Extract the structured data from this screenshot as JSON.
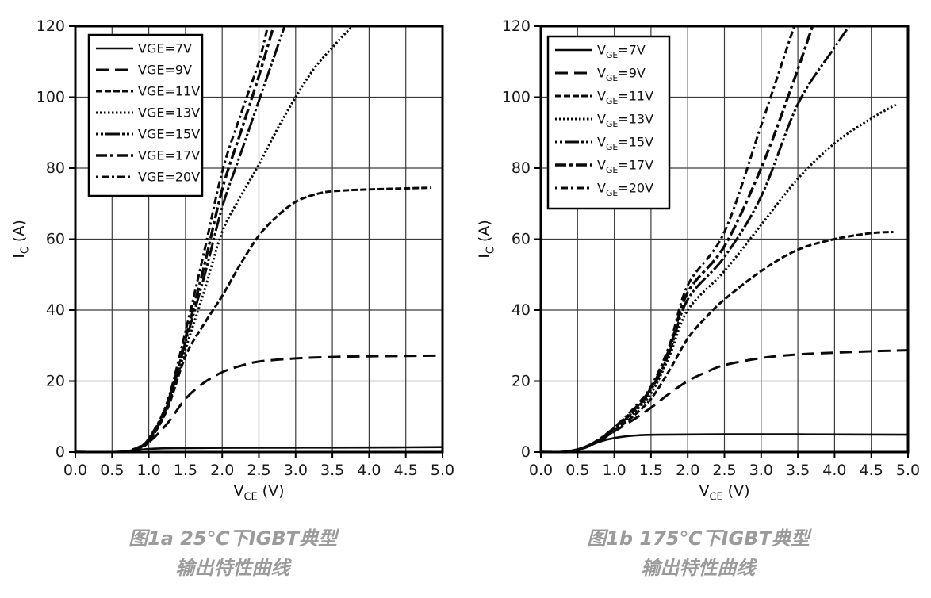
{
  "styles": {
    "curve_color": "#0a0a0a",
    "grid_color": "#3c3c3c",
    "frame_color": "#000000",
    "legend_border_color": "#000000",
    "caption_color": "#9b9b9b",
    "background": "#ffffff"
  },
  "chart_data": [
    {
      "type": "line",
      "temperature": "25℃",
      "caption": {
        "line1": "图1a 25℃下IGBT典型",
        "line2": "输出特性曲线"
      },
      "x_axis": {
        "parts": [
          {
            "t": "V"
          },
          {
            "t": "CE",
            "sub": true
          },
          {
            "t": " (V)"
          }
        ],
        "min": 0,
        "max": 5,
        "ticks": [
          "0.0",
          "0.5",
          "1.0",
          "1.5",
          "2.0",
          "2.5",
          "3.0",
          "3.5",
          "4.0",
          "4.5",
          "5.0"
        ],
        "grid": true
      },
      "y_axis": {
        "parts": [
          {
            "t": "I"
          },
          {
            "t": "C",
            "sub": true
          },
          {
            "t": " (A)"
          }
        ],
        "min": 0,
        "max": 120,
        "ticks": [
          "0",
          "20",
          "40",
          "60",
          "80",
          "100",
          "120"
        ],
        "grid": true
      },
      "legend_position": "upper-left",
      "legend_subscript": false,
      "series": [
        {
          "vge": "7V",
          "dash": "",
          "width": 2.6,
          "legend_parts": [
            {
              "t": "VGE=7V"
            }
          ],
          "points": [
            [
              0,
              0
            ],
            [
              0.55,
              0
            ],
            [
              0.7,
              0.15
            ],
            [
              0.85,
              0.55
            ],
            [
              1.0,
              0.9
            ],
            [
              1.3,
              1.1
            ],
            [
              2,
              1.2
            ],
            [
              3,
              1.25
            ],
            [
              4,
              1.3
            ],
            [
              5,
              1.4
            ]
          ]
        },
        {
          "vge": "9V",
          "dash": "16,8",
          "width": 3,
          "legend_parts": [
            {
              "t": "VGE=9V"
            }
          ],
          "points": [
            [
              0,
              0
            ],
            [
              0.6,
              0.05
            ],
            [
              0.8,
              0.9
            ],
            [
              1.0,
              2.8
            ],
            [
              1.25,
              8
            ],
            [
              1.5,
              15
            ],
            [
              1.75,
              19.5
            ],
            [
              2.0,
              22.5
            ],
            [
              2.25,
              24.3
            ],
            [
              2.5,
              25.5
            ],
            [
              3.0,
              26.4
            ],
            [
              3.5,
              26.8
            ],
            [
              4.0,
              27
            ],
            [
              4.5,
              27.1
            ],
            [
              5.0,
              27.2
            ]
          ]
        },
        {
          "vge": "11V",
          "dash": "8,3",
          "width": 3,
          "legend_parts": [
            {
              "t": "VGE=11V"
            }
          ],
          "points": [
            [
              0,
              0
            ],
            [
              0.65,
              0.05
            ],
            [
              0.85,
              1
            ],
            [
              1.0,
              3
            ],
            [
              1.25,
              12
            ],
            [
              1.5,
              27
            ],
            [
              1.75,
              36
            ],
            [
              2.0,
              44
            ],
            [
              2.25,
              53
            ],
            [
              2.5,
              61
            ],
            [
              2.75,
              66.5
            ],
            [
              3.0,
              70.5
            ],
            [
              3.25,
              72.5
            ],
            [
              3.5,
              73.5
            ],
            [
              4.0,
              74
            ],
            [
              4.5,
              74.3
            ],
            [
              4.85,
              74.5
            ]
          ]
        },
        {
          "vge": "13V",
          "dash": "2.5,2.5",
          "width": 3,
          "legend_parts": [
            {
              "t": "VGE=13V"
            }
          ],
          "points": [
            [
              0,
              0
            ],
            [
              0.65,
              0.05
            ],
            [
              0.85,
              1.1
            ],
            [
              1.0,
              3.3
            ],
            [
              1.25,
              12.5
            ],
            [
              1.5,
              29
            ],
            [
              1.75,
              45
            ],
            [
              2.0,
              62
            ],
            [
              2.25,
              72
            ],
            [
              2.5,
              81
            ],
            [
              2.75,
              91
            ],
            [
              3.0,
              100
            ],
            [
              3.25,
              108
            ],
            [
              3.5,
              114
            ],
            [
              3.75,
              119.5
            ],
            [
              3.82,
              120
            ]
          ]
        },
        {
          "vge": "15V",
          "dash": "3,3,3,3,18,3",
          "width": 3,
          "legend_parts": [
            {
              "t": "VGE=15V"
            }
          ],
          "points": [
            [
              0,
              0
            ],
            [
              0.65,
              0.05
            ],
            [
              0.85,
              1.2
            ],
            [
              1.0,
              3.5
            ],
            [
              1.25,
              13
            ],
            [
              1.5,
              31
            ],
            [
              1.75,
              49
            ],
            [
              2.0,
              69
            ],
            [
              2.25,
              84
            ],
            [
              2.5,
              99
            ],
            [
              2.7,
              111
            ],
            [
              2.85,
              120
            ]
          ]
        },
        {
          "vge": "17V",
          "dash": "14,4,4,4",
          "width": 3.4,
          "legend_parts": [
            {
              "t": "VGE=17V"
            }
          ],
          "points": [
            [
              0,
              0
            ],
            [
              0.65,
              0.05
            ],
            [
              0.85,
              1.2
            ],
            [
              1.0,
              3.6
            ],
            [
              1.25,
              13.5
            ],
            [
              1.5,
              32
            ],
            [
              1.75,
              52
            ],
            [
              2.0,
              74
            ],
            [
              2.25,
              90
            ],
            [
              2.5,
              106
            ],
            [
              2.7,
              120
            ]
          ]
        },
        {
          "vge": "20V",
          "dash": "3,4,9,4",
          "width": 3,
          "legend_parts": [
            {
              "t": "VGE=20V"
            }
          ],
          "points": [
            [
              0,
              0
            ],
            [
              0.65,
              0.05
            ],
            [
              0.85,
              1.3
            ],
            [
              1.0,
              3.8
            ],
            [
              1.25,
              14
            ],
            [
              1.5,
              34
            ],
            [
              1.75,
              56
            ],
            [
              2.0,
              79
            ],
            [
              2.25,
              95
            ],
            [
              2.5,
              110
            ],
            [
              2.62,
              120
            ]
          ]
        }
      ]
    },
    {
      "type": "line",
      "temperature": "175℃",
      "caption": {
        "line1": "图1b 175℃下IGBT典型",
        "line2": "输出特性曲线"
      },
      "x_axis": {
        "parts": [
          {
            "t": "V"
          },
          {
            "t": "CE",
            "sub": true
          },
          {
            "t": " (V)"
          }
        ],
        "min": 0,
        "max": 5,
        "ticks": [
          "0.0",
          "0.5",
          "1.0",
          "1.5",
          "2.0",
          "2.5",
          "3.0",
          "3.5",
          "4.0",
          "4.5",
          "5.0"
        ],
        "grid": true
      },
      "y_axis": {
        "parts": [
          {
            "t": "I"
          },
          {
            "t": "C",
            "sub": true
          },
          {
            "t": " (A)"
          }
        ],
        "min": 0,
        "max": 120,
        "ticks": [
          "0",
          "20",
          "40",
          "60",
          "80",
          "100",
          "120"
        ],
        "grid": true
      },
      "legend_position": "upper-left",
      "legend_subscript": true,
      "series": [
        {
          "vge": "7V",
          "dash": "",
          "width": 2.6,
          "legend_parts": [
            {
              "t": "V"
            },
            {
              "t": "GE",
              "sub": true
            },
            {
              "t": "=7V"
            }
          ],
          "points": [
            [
              0,
              0
            ],
            [
              0.3,
              0.1
            ],
            [
              0.5,
              0.8
            ],
            [
              0.7,
              2.2
            ],
            [
              0.9,
              3.5
            ],
            [
              1.1,
              4.3
            ],
            [
              1.3,
              4.7
            ],
            [
              1.6,
              4.9
            ],
            [
              2.5,
              5.0
            ],
            [
              3.5,
              5.0
            ],
            [
              5.0,
              4.9
            ]
          ]
        },
        {
          "vge": "9V",
          "dash": "16,8",
          "width": 3,
          "legend_parts": [
            {
              "t": "V"
            },
            {
              "t": "GE",
              "sub": true
            },
            {
              "t": "=9V"
            }
          ],
          "points": [
            [
              0,
              0
            ],
            [
              0.35,
              0.1
            ],
            [
              0.55,
              1
            ],
            [
              0.8,
              3.2
            ],
            [
              1.0,
              5.8
            ],
            [
              1.25,
              9
            ],
            [
              1.5,
              12.5
            ],
            [
              1.75,
              16.5
            ],
            [
              2.0,
              20
            ],
            [
              2.25,
              22.5
            ],
            [
              2.5,
              24.5
            ],
            [
              3.0,
              26.5
            ],
            [
              3.5,
              27.5
            ],
            [
              4.0,
              28
            ],
            [
              4.5,
              28.4
            ],
            [
              5.0,
              28.7
            ]
          ]
        },
        {
          "vge": "11V",
          "dash": "8,3",
          "width": 3,
          "legend_parts": [
            {
              "t": "V"
            },
            {
              "t": "GE",
              "sub": true
            },
            {
              "t": "=11V"
            }
          ],
          "points": [
            [
              0,
              0
            ],
            [
              0.4,
              0.1
            ],
            [
              0.6,
              1.2
            ],
            [
              0.8,
              3.2
            ],
            [
              1.0,
              6
            ],
            [
              1.25,
              10
            ],
            [
              1.5,
              15
            ],
            [
              1.75,
              23
            ],
            [
              2.0,
              32
            ],
            [
              2.25,
              38
            ],
            [
              2.5,
              43
            ],
            [
              3.0,
              51
            ],
            [
              3.5,
              57
            ],
            [
              4.0,
              60
            ],
            [
              4.5,
              61.7
            ],
            [
              4.8,
              62
            ]
          ]
        },
        {
          "vge": "13V",
          "dash": "2.5,2.5",
          "width": 3,
          "legend_parts": [
            {
              "t": "V"
            },
            {
              "t": "GE",
              "sub": true
            },
            {
              "t": "=13V"
            }
          ],
          "points": [
            [
              0,
              0
            ],
            [
              0.4,
              0.1
            ],
            [
              0.6,
              1.3
            ],
            [
              0.8,
              3.4
            ],
            [
              1.0,
              6.4
            ],
            [
              1.25,
              10.8
            ],
            [
              1.5,
              16.5
            ],
            [
              1.75,
              27
            ],
            [
              2.0,
              40
            ],
            [
              2.5,
              51
            ],
            [
              3.0,
              64
            ],
            [
              3.5,
              77
            ],
            [
              4.0,
              87
            ],
            [
              4.5,
              94
            ],
            [
              4.85,
              98
            ]
          ]
        },
        {
          "vge": "15V",
          "dash": "3,3,3,3,18,3",
          "width": 3,
          "legend_parts": [
            {
              "t": "V"
            },
            {
              "t": "GE",
              "sub": true
            },
            {
              "t": "=15V"
            }
          ],
          "points": [
            [
              0,
              0
            ],
            [
              0.4,
              0.1
            ],
            [
              0.6,
              1.3
            ],
            [
              0.8,
              3.5
            ],
            [
              1.0,
              6.6
            ],
            [
              1.25,
              11.2
            ],
            [
              1.5,
              17.5
            ],
            [
              1.75,
              28
            ],
            [
              2.0,
              43
            ],
            [
              2.5,
              55
            ],
            [
              3.0,
              72
            ],
            [
              3.5,
              98
            ],
            [
              4.0,
              114
            ],
            [
              4.2,
              120
            ]
          ]
        },
        {
          "vge": "17V",
          "dash": "14,4,4,4",
          "width": 3.4,
          "legend_parts": [
            {
              "t": "V"
            },
            {
              "t": "GE",
              "sub": true
            },
            {
              "t": "=17V"
            }
          ],
          "points": [
            [
              0,
              0
            ],
            [
              0.4,
              0.1
            ],
            [
              0.6,
              1.4
            ],
            [
              0.8,
              3.6
            ],
            [
              1.0,
              6.8
            ],
            [
              1.25,
              11.6
            ],
            [
              1.5,
              18
            ],
            [
              1.75,
              29
            ],
            [
              2.0,
              45
            ],
            [
              2.5,
              58
            ],
            [
              3.0,
              80
            ],
            [
              3.4,
              102
            ],
            [
              3.7,
              120
            ]
          ]
        },
        {
          "vge": "20V",
          "dash": "3,4,9,4",
          "width": 3,
          "legend_parts": [
            {
              "t": "V"
            },
            {
              "t": "GE",
              "sub": true
            },
            {
              "t": "=20V"
            }
          ],
          "points": [
            [
              0,
              0
            ],
            [
              0.4,
              0.1
            ],
            [
              0.6,
              1.4
            ],
            [
              0.8,
              3.7
            ],
            [
              1.0,
              7
            ],
            [
              1.25,
              12
            ],
            [
              1.5,
              18.5
            ],
            [
              1.75,
              30
            ],
            [
              2.0,
              47
            ],
            [
              2.5,
              62
            ],
            [
              3.0,
              92
            ],
            [
              3.45,
              120
            ]
          ]
        }
      ]
    }
  ]
}
